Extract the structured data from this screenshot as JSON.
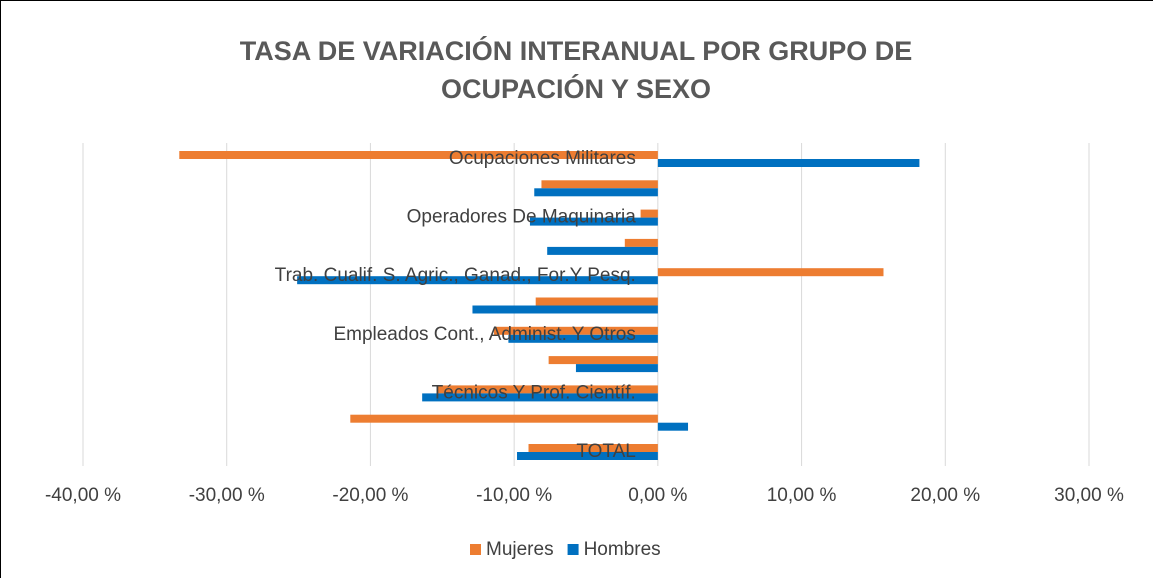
{
  "chart_data": {
    "type": "hbar",
    "title": "TASA DE VARIACIÓN INTERANUAL POR GRUPO DE OCUPACIÓN Y SEXO",
    "categories": [
      "Ocupaciones Militares",
      null,
      "Operadores De Maquinaria",
      null,
      "Trab. Cualif. S. Agric., Ganad., For.Y Pesq.",
      null,
      "Empleados Cont., Administ. Y Otros",
      null,
      "Técnicos Y Prof. Científ.",
      null,
      "TOTAL"
    ],
    "series": [
      {
        "name": "Mujeres",
        "color": "#ED7D31",
        "values": [
          -33.3,
          -8.1,
          -1.2,
          -2.3,
          15.7,
          -8.5,
          -11.4,
          -7.6,
          -15.4,
          -21.4,
          -9.0
        ]
      },
      {
        "name": "Hombres",
        "color": "#0070C0",
        "values": [
          18.2,
          -8.6,
          -8.9,
          -7.7,
          -25.1,
          -12.9,
          -10.4,
          -5.7,
          -16.4,
          2.1,
          -9.8
        ]
      }
    ],
    "xlim": [
      -40,
      30
    ],
    "xticks": [
      {
        "value": -40,
        "label": "-40,00 %"
      },
      {
        "value": -30,
        "label": "-30,00 %"
      },
      {
        "value": -20,
        "label": "-20,00 %"
      },
      {
        "value": -10,
        "label": "-10,00 %"
      },
      {
        "value": 0,
        "label": "0,00 %"
      },
      {
        "value": 10,
        "label": "10,00 %"
      },
      {
        "value": 20,
        "label": "20,00 %"
      },
      {
        "value": 30,
        "label": "30,00 %"
      }
    ],
    "grid": true,
    "legend": "bottom"
  }
}
